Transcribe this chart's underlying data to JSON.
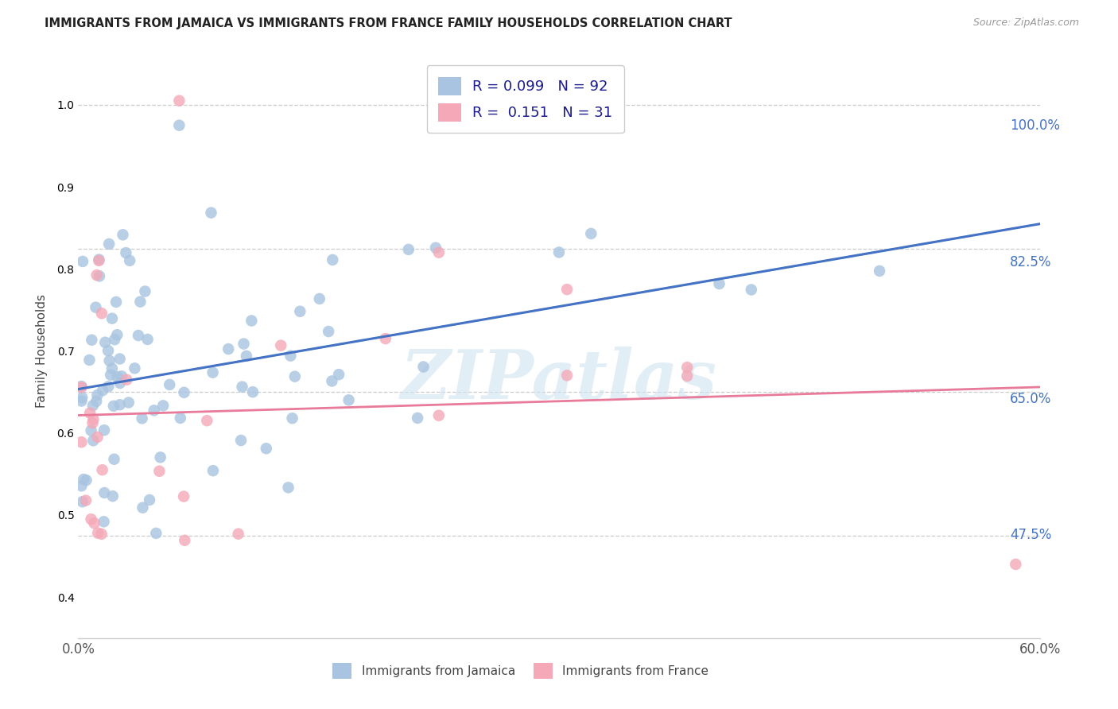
{
  "title": "IMMIGRANTS FROM JAMAICA VS IMMIGRANTS FROM FRANCE FAMILY HOUSEHOLDS CORRELATION CHART",
  "source": "Source: ZipAtlas.com",
  "ylabel": "Family Households",
  "ytick_labels": [
    "100.0%",
    "82.5%",
    "65.0%",
    "47.5%"
  ],
  "ytick_values": [
    1.0,
    0.825,
    0.65,
    0.475
  ],
  "xlim": [
    0.0,
    0.6
  ],
  "ylim": [
    0.35,
    1.05
  ],
  "color_jamaica": "#a8c4e0",
  "color_france": "#f4a8b8",
  "line_color_jamaica": "#4472c4",
  "line_color_france": "#e87a9a",
  "line_color_dashed": "#a8c4e0",
  "watermark": "ZIPatlas",
  "background_color": "#ffffff",
  "title_color": "#222222",
  "right_axis_color": "#4472c4",
  "legend_label_color": "#1a1a8e"
}
